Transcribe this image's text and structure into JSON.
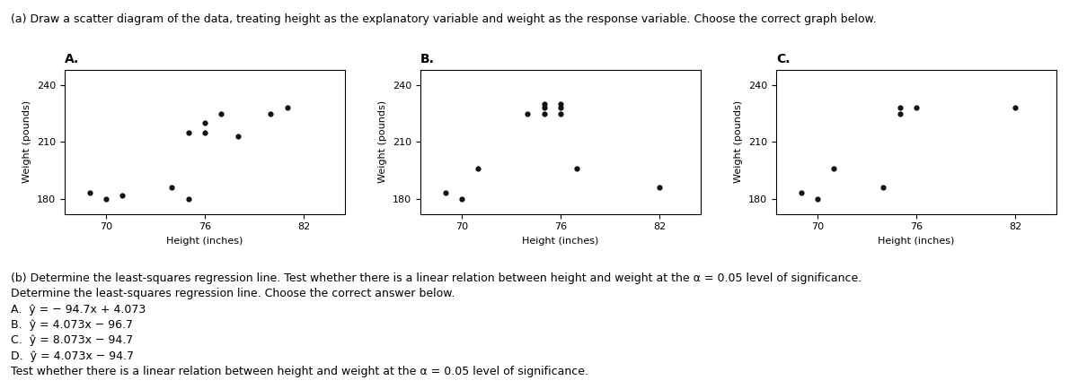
{
  "title": "(a) Draw a scatter diagram of the data, treating height as the explanatory variable and weight as the response variable. Choose the correct graph below.",
  "annotations": [
    "(b) Determine the least-squares regression line. Test whether there is a linear relation between height and weight at the α = 0.05 level of significance.",
    "Determine the least-squares regression line. Choose the correct answer below.",
    "A.  ŷ = − 94.7x + 4.073",
    "B.  ŷ = 4.073x − 96.7",
    "C.  ŷ = 8.073x − 94.7",
    "D.  ŷ = 4.073x − 94.7",
    "Test whether there is a linear relation between height and weight at the α = 0.05 level of significance."
  ],
  "chart_data": [
    {
      "type": "scatter",
      "title": "A.",
      "xlabel": "Height (inches)",
      "ylabel": "Weight (pounds)",
      "x": [
        69,
        70,
        71,
        74,
        75,
        75,
        76,
        76,
        77,
        78,
        80,
        81
      ],
      "y": [
        183,
        180,
        182,
        186,
        215,
        180,
        220,
        215,
        225,
        213,
        225,
        228
      ],
      "color": "#111111",
      "xlim": [
        67.5,
        84.5
      ],
      "ylim": [
        172,
        248
      ],
      "xticks": [
        70,
        76,
        82
      ],
      "yticks": [
        180,
        210,
        240
      ]
    },
    {
      "type": "scatter",
      "title": "B.",
      "xlabel": "Height (inches)",
      "ylabel": "Weight (pounds)",
      "x": [
        69,
        70,
        71,
        74,
        75,
        75,
        75,
        76,
        76,
        76,
        77,
        82
      ],
      "y": [
        183,
        180,
        196,
        225,
        228,
        225,
        230,
        228,
        225,
        230,
        196,
        186
      ],
      "color": "#111111",
      "xlim": [
        67.5,
        84.5
      ],
      "ylim": [
        172,
        248
      ],
      "xticks": [
        70,
        76,
        82
      ],
      "yticks": [
        180,
        210,
        240
      ]
    },
    {
      "type": "scatter",
      "title": "C.",
      "xlabel": "Height (inches)",
      "ylabel": "Weight (pounds)",
      "x": [
        69,
        70,
        71,
        74,
        75,
        75,
        76,
        82
      ],
      "y": [
        183,
        180,
        196,
        186,
        228,
        225,
        228,
        228
      ],
      "color": "#111111",
      "xlim": [
        67.5,
        84.5
      ],
      "ylim": [
        172,
        248
      ],
      "xticks": [
        70,
        76,
        82
      ],
      "yticks": [
        180,
        210,
        240
      ]
    }
  ]
}
